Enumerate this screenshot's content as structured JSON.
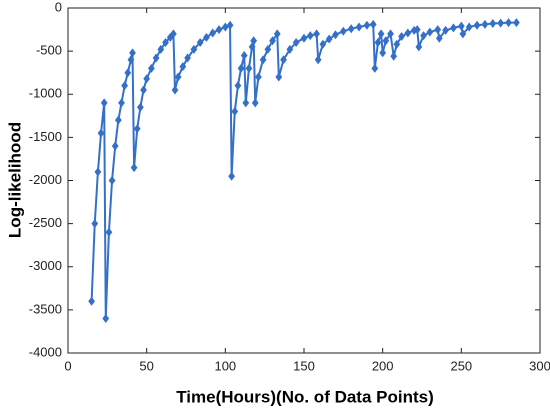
{
  "chart_data": {
    "type": "line",
    "x_label": "Time(Hours)(No. of Data Points)",
    "y_label": "Log-likelihood",
    "xlim": [
      0,
      300
    ],
    "xticks": [
      0,
      50,
      100,
      150,
      200,
      250,
      300
    ],
    "ylim": [
      -4000,
      0
    ],
    "yticks": [
      -4000,
      -3500,
      -3000,
      -2500,
      -2000,
      -1500,
      -1000,
      -500,
      0
    ],
    "marker": "diamond",
    "series": [
      {
        "color": "#3470c9",
        "x": [
          15,
          17,
          19,
          21,
          23,
          24,
          26,
          28,
          30,
          32,
          34,
          36,
          38,
          40,
          41,
          42,
          44,
          46,
          48,
          50,
          53,
          56,
          59,
          62,
          65,
          67,
          68,
          70,
          73,
          76,
          80,
          84,
          88,
          92,
          96,
          100,
          103,
          104,
          106,
          108,
          110,
          112,
          113,
          115,
          117,
          118,
          119,
          121,
          124,
          127,
          130,
          133,
          134,
          137,
          141,
          145,
          150,
          154,
          158,
          159,
          162,
          166,
          170,
          175,
          180,
          185,
          190,
          194,
          195,
          197,
          199,
          200,
          202,
          205,
          207,
          209,
          212,
          216,
          220,
          222,
          223,
          226,
          230,
          235,
          236,
          240,
          245,
          250,
          251,
          255,
          260,
          265,
          270,
          275,
          280,
          285
        ],
        "values": [
          -3400,
          -2500,
          -1900,
          -1450,
          -1100,
          -3600,
          -2600,
          -2000,
          -1600,
          -1300,
          -1100,
          -900,
          -750,
          -600,
          -520,
          -1850,
          -1400,
          -1150,
          -950,
          -820,
          -700,
          -580,
          -480,
          -400,
          -340,
          -300,
          -950,
          -800,
          -680,
          -580,
          -480,
          -400,
          -340,
          -290,
          -250,
          -220,
          -200,
          -1950,
          -1200,
          -900,
          -700,
          -550,
          -1100,
          -700,
          -450,
          -380,
          -1100,
          -800,
          -600,
          -480,
          -380,
          -300,
          -800,
          -600,
          -480,
          -400,
          -350,
          -320,
          -300,
          -600,
          -420,
          -360,
          -310,
          -270,
          -240,
          -220,
          -200,
          -190,
          -700,
          -400,
          -300,
          -520,
          -380,
          -300,
          -560,
          -420,
          -330,
          -290,
          -260,
          -250,
          -450,
          -320,
          -280,
          -250,
          -350,
          -260,
          -230,
          -210,
          -300,
          -220,
          -200,
          -190,
          -180,
          -175,
          -170,
          -170
        ]
      }
    ]
  }
}
